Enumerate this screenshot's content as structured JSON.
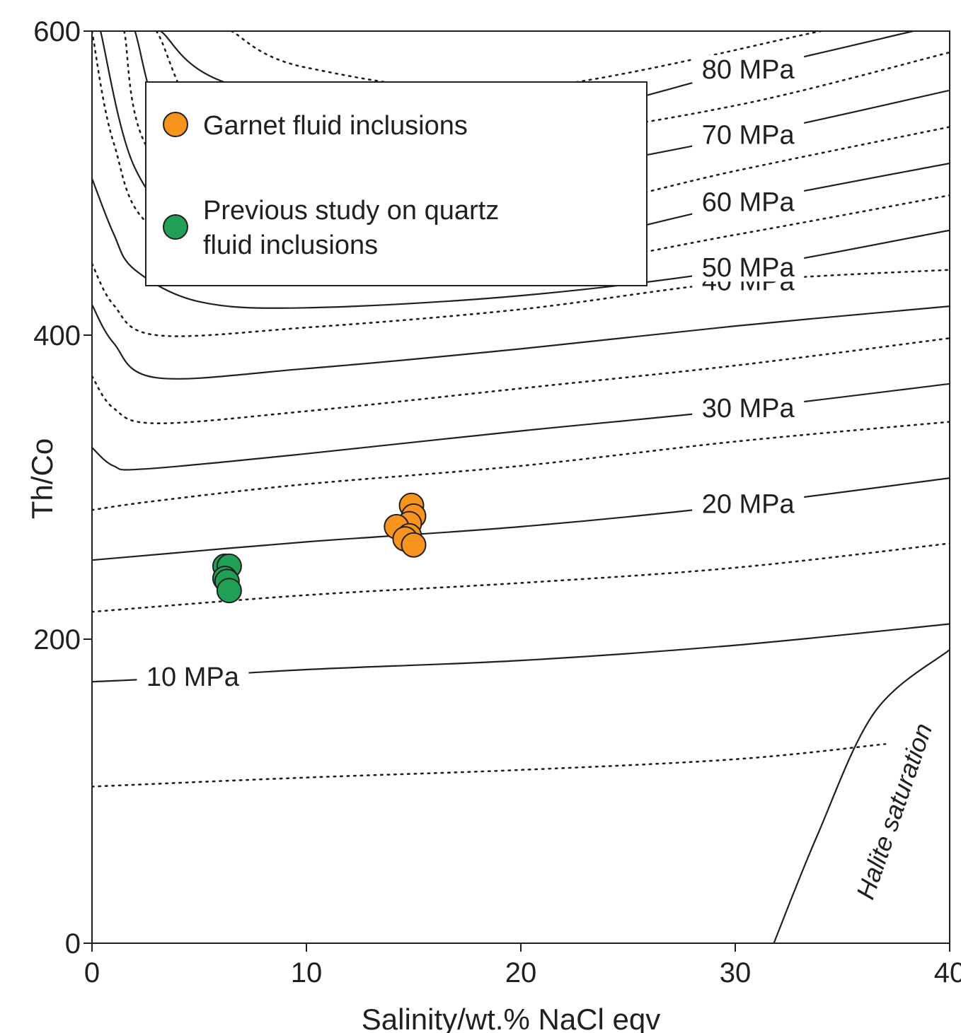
{
  "chart_data": {
    "type": "scatter",
    "xlabel": "Salinity/wt.% NaCl eqv",
    "ylabel": "Th/Co",
    "xlim": [
      0,
      40
    ],
    "ylim": [
      0,
      600
    ],
    "xticks": [
      "0",
      "10",
      "20",
      "30",
      "40"
    ],
    "yticks": [
      "0",
      "200",
      "400",
      "600"
    ],
    "grid": false,
    "legend_placement": "top-left",
    "series": [
      {
        "name": "Garnet fluid inclusions",
        "color": "#f7941d",
        "points": [
          {
            "x": 14.9,
            "y": 288
          },
          {
            "x": 15.0,
            "y": 281
          },
          {
            "x": 14.8,
            "y": 276
          },
          {
            "x": 14.2,
            "y": 274
          },
          {
            "x": 14.8,
            "y": 268
          },
          {
            "x": 14.6,
            "y": 266
          },
          {
            "x": 15.0,
            "y": 262
          }
        ]
      },
      {
        "name": "Previous study on quartz fluid inclusions",
        "color": "#1fa055",
        "points": [
          {
            "x": 6.2,
            "y": 248
          },
          {
            "x": 6.4,
            "y": 248
          },
          {
            "x": 6.2,
            "y": 240
          },
          {
            "x": 6.3,
            "y": 238
          },
          {
            "x": 6.4,
            "y": 232
          }
        ]
      }
    ],
    "isobars": [
      {
        "label": "10 MPa",
        "style": "solid",
        "points": [
          [
            0,
            172
          ],
          [
            3,
            174
          ],
          [
            10,
            180
          ],
          [
            20,
            186
          ],
          [
            30,
            196
          ],
          [
            40,
            210
          ]
        ]
      },
      {
        "label": "",
        "style": "dotted",
        "points": [
          [
            0,
            103
          ],
          [
            10,
            109
          ],
          [
            20,
            114
          ],
          [
            30,
            121
          ],
          [
            37,
            131
          ]
        ]
      },
      {
        "label": "",
        "style": "dotted",
        "points": [
          [
            0,
            218
          ],
          [
            10,
            229
          ],
          [
            20,
            237
          ],
          [
            30,
            247
          ],
          [
            40,
            263
          ]
        ]
      },
      {
        "label": "20 MPa",
        "style": "solid",
        "points": [
          [
            0,
            252
          ],
          [
            10,
            264
          ],
          [
            20,
            274
          ],
          [
            30,
            288
          ],
          [
            40,
            306
          ]
        ]
      },
      {
        "label": "",
        "style": "dotted",
        "points": [
          [
            0,
            285
          ],
          [
            3,
            291
          ],
          [
            10,
            302
          ],
          [
            20,
            314
          ],
          [
            30,
            330
          ],
          [
            40,
            343
          ]
        ]
      },
      {
        "label": "30 MPa",
        "style": "solid",
        "points": [
          [
            0,
            326
          ],
          [
            1,
            314
          ],
          [
            2.5,
            312
          ],
          [
            10,
            322
          ],
          [
            20,
            337
          ],
          [
            30,
            351
          ],
          [
            40,
            368
          ]
        ]
      },
      {
        "label": "",
        "style": "dotted",
        "points": [
          [
            0,
            373
          ],
          [
            1,
            352
          ],
          [
            3,
            342
          ],
          [
            10,
            350
          ],
          [
            20,
            365
          ],
          [
            30,
            380
          ],
          [
            40,
            398
          ]
        ]
      },
      {
        "label": "",
        "style": "solid",
        "points": [
          [
            0,
            420
          ],
          [
            1,
            395
          ],
          [
            3,
            372
          ],
          [
            10,
            378
          ],
          [
            20,
            391
          ],
          [
            30,
            406
          ],
          [
            40,
            419
          ]
        ]
      },
      {
        "label": "40 MPa",
        "style": "dotted",
        "points": [
          [
            0,
            447
          ],
          [
            1,
            420
          ],
          [
            3,
            400
          ],
          [
            10,
            405
          ],
          [
            20,
            417
          ],
          [
            30,
            435
          ],
          [
            40,
            443
          ]
        ]
      },
      {
        "label": "50 MPa",
        "style": "solid",
        "points": [
          [
            0,
            503
          ],
          [
            1,
            467
          ],
          [
            2,
            443
          ],
          [
            5,
            422
          ],
          [
            10,
            418
          ],
          [
            20,
            426
          ],
          [
            30,
            443
          ],
          [
            40,
            469
          ]
        ]
      },
      {
        "label": "",
        "style": "dotted",
        "points": [
          [
            0,
            600
          ],
          [
            1,
            527
          ],
          [
            3,
            469
          ],
          [
            10,
            439
          ],
          [
            20,
            442
          ],
          [
            30,
            466
          ],
          [
            40,
            492
          ]
        ]
      },
      {
        "label": "60 MPa",
        "style": "solid",
        "points": [
          [
            0.4,
            600
          ],
          [
            2,
            510
          ],
          [
            5,
            465
          ],
          [
            10,
            451
          ],
          [
            20,
            456
          ],
          [
            30,
            486
          ],
          [
            40,
            513
          ]
        ]
      },
      {
        "label": "",
        "style": "dotted",
        "points": [
          [
            1.5,
            600
          ],
          [
            3,
            515
          ],
          [
            10,
            470
          ],
          [
            20,
            477
          ],
          [
            30,
            508
          ],
          [
            40,
            537
          ]
        ]
      },
      {
        "label": "70 MPa",
        "style": "solid",
        "points": [
          [
            2,
            600
          ],
          [
            4,
            524
          ],
          [
            10,
            494
          ],
          [
            20,
            505
          ],
          [
            30,
            530
          ],
          [
            40,
            561
          ]
        ]
      },
      {
        "label": "",
        "style": "dotted",
        "points": [
          [
            3,
            600
          ],
          [
            7,
            522
          ],
          [
            20,
            530
          ],
          [
            30,
            551
          ],
          [
            40,
            586
          ]
        ]
      },
      {
        "label": "80 MPa",
        "style": "solid",
        "points": [
          [
            3.2,
            600
          ],
          [
            7,
            563
          ],
          [
            20,
            544
          ],
          [
            30,
            573
          ],
          [
            38.3,
            600
          ]
        ]
      },
      {
        "label": "",
        "style": "dotted",
        "points": [
          [
            6.5,
            600
          ],
          [
            10,
            576
          ],
          [
            20,
            562
          ],
          [
            34,
            600
          ]
        ]
      }
    ],
    "halite_saturation": {
      "label": "Halite saturation",
      "points": [
        [
          31.8,
          0
        ],
        [
          33.8,
          70
        ],
        [
          36.5,
          152
        ],
        [
          40,
          193
        ]
      ]
    }
  }
}
